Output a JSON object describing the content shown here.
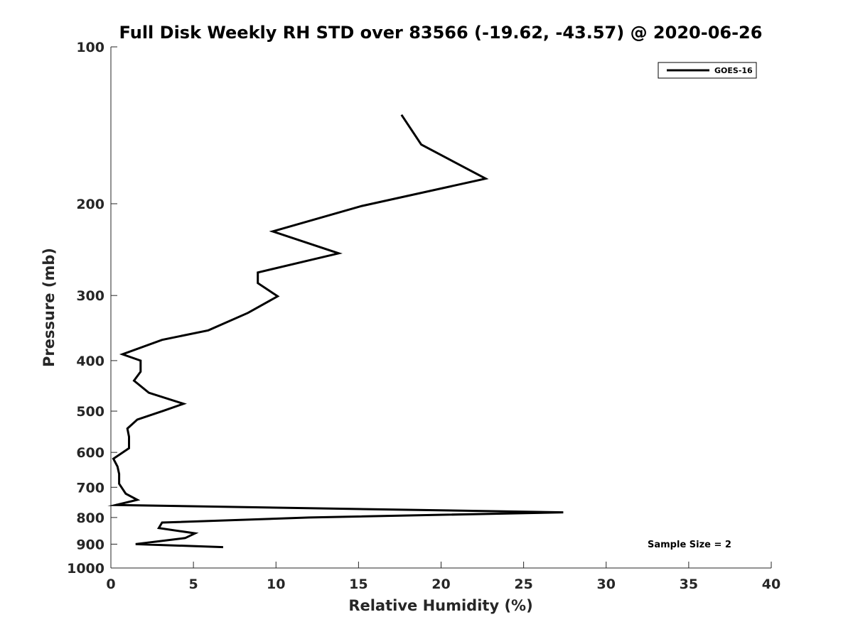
{
  "chart_data": {
    "type": "line",
    "title": "Full Disk Weekly RH STD over 83566 (-19.62, -43.57) @ 2020-06-26",
    "xlabel": "Relative Humidity (%)",
    "ylabel": "Pressure (mb)",
    "xlim": [
      0,
      40
    ],
    "ylim": [
      100,
      1000
    ],
    "y_scale": "log",
    "y_reversed": true,
    "x_ticks": [
      0,
      5,
      10,
      15,
      20,
      25,
      30,
      35,
      40
    ],
    "y_ticks": [
      100,
      200,
      300,
      400,
      500,
      600,
      700,
      800,
      900,
      1000
    ],
    "grid": false,
    "legend_position": "top-right",
    "annotation": "Sample Size = 2",
    "series": [
      {
        "name": "GOES-16",
        "color": "#000000",
        "points": [
          {
            "x": 17.6,
            "y": 135
          },
          {
            "x": 18.8,
            "y": 154
          },
          {
            "x": 22.7,
            "y": 179
          },
          {
            "x": 15.2,
            "y": 202
          },
          {
            "x": 9.8,
            "y": 226
          },
          {
            "x": 13.8,
            "y": 249
          },
          {
            "x": 8.9,
            "y": 271
          },
          {
            "x": 8.9,
            "y": 284
          },
          {
            "x": 10.1,
            "y": 301
          },
          {
            "x": 8.3,
            "y": 324
          },
          {
            "x": 5.9,
            "y": 350
          },
          {
            "x": 3.1,
            "y": 365
          },
          {
            "x": 0.7,
            "y": 389
          },
          {
            "x": 1.8,
            "y": 400
          },
          {
            "x": 1.8,
            "y": 420
          },
          {
            "x": 1.4,
            "y": 437
          },
          {
            "x": 2.3,
            "y": 461
          },
          {
            "x": 4.4,
            "y": 484
          },
          {
            "x": 3.2,
            "y": 499
          },
          {
            "x": 1.6,
            "y": 519
          },
          {
            "x": 1.0,
            "y": 540
          },
          {
            "x": 1.1,
            "y": 560
          },
          {
            "x": 1.1,
            "y": 589
          },
          {
            "x": 0.15,
            "y": 617
          },
          {
            "x": 0.4,
            "y": 639
          },
          {
            "x": 0.5,
            "y": 660
          },
          {
            "x": 0.5,
            "y": 689
          },
          {
            "x": 0.9,
            "y": 720
          },
          {
            "x": 1.6,
            "y": 740
          },
          {
            "x": 0.3,
            "y": 757
          },
          {
            "x": 27.4,
            "y": 782
          },
          {
            "x": 12.0,
            "y": 800
          },
          {
            "x": 3.1,
            "y": 818
          },
          {
            "x": 2.9,
            "y": 838
          },
          {
            "x": 5.1,
            "y": 858
          },
          {
            "x": 4.5,
            "y": 876
          },
          {
            "x": 1.5,
            "y": 900
          },
          {
            "x": 6.8,
            "y": 912
          }
        ]
      }
    ]
  }
}
